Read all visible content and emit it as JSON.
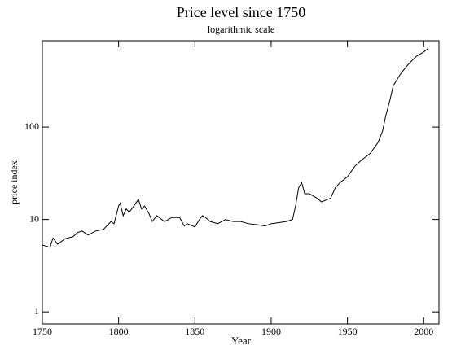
{
  "chart_data": {
    "type": "line",
    "title": "Price level since 1750",
    "subtitle": "logarithmic scale",
    "x_label": "Year",
    "y_label": "price index",
    "log_y": true,
    "color": "#000000",
    "xlim": [
      1750,
      2010
    ],
    "xticks": [
      1750,
      1800,
      1850,
      1900,
      1950,
      2000
    ],
    "ylim": [
      0.74,
      860
    ],
    "yticks": [
      1,
      10,
      100
    ],
    "x": [
      1750,
      1755,
      1757,
      1760,
      1765,
      1770,
      1773,
      1776,
      1780,
      1785,
      1790,
      1795,
      1797,
      1800,
      1801,
      1803,
      1805,
      1807,
      1810,
      1813,
      1815,
      1817,
      1820,
      1822,
      1825,
      1830,
      1835,
      1840,
      1843,
      1845,
      1850,
      1853,
      1855,
      1857,
      1860,
      1865,
      1870,
      1875,
      1880,
      1885,
      1890,
      1896,
      1900,
      1910,
      1914,
      1916,
      1918,
      1920,
      1922,
      1925,
      1930,
      1933,
      1937,
      1939,
      1942,
      1945,
      1950,
      1955,
      1960,
      1965,
      1970,
      1973,
      1975,
      1978,
      1980,
      1985,
      1990,
      1995,
      2000,
      2003
    ],
    "values": [
      5.3,
      5.0,
      6.3,
      5.4,
      6.2,
      6.5,
      7.2,
      7.5,
      6.8,
      7.5,
      7.8,
      9.5,
      9,
      14,
      15,
      11,
      13,
      12,
      14,
      16.5,
      13,
      14,
      11.5,
      9.5,
      11,
      9.5,
      10.5,
      10.5,
      8.5,
      9,
      8.3,
      10,
      11,
      10.5,
      9.5,
      9,
      10,
      9.5,
      9.5,
      9,
      8.8,
      8.5,
      9,
      9.5,
      10,
      14,
      22,
      25,
      19,
      19,
      17,
      15.5,
      16.5,
      17,
      22,
      25,
      29,
      38,
      45,
      52,
      68,
      90,
      130,
      200,
      280,
      380,
      480,
      580,
      650,
      710
    ]
  }
}
